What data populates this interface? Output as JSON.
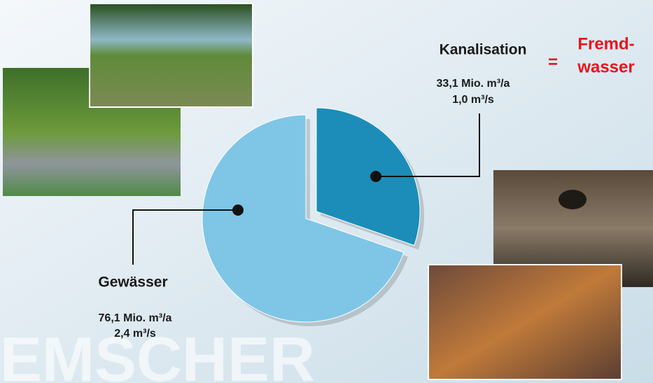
{
  "chart_data": {
    "type": "pie",
    "categories": [
      "Kanalisation",
      "Gewässer"
    ],
    "values": [
      33.1,
      76.1
    ],
    "value_labels": [
      "33,1 Mio. m³/a",
      "76,1 Mio. m³/a"
    ],
    "flow_labels": [
      "1,0 m³/s",
      "2,4 m³/s"
    ],
    "colors": [
      "#1b8db8",
      "#7fc6e6"
    ],
    "annotation": {
      "sign": "=",
      "lines": [
        "Fremd-",
        "wasser"
      ],
      "color": "#e8141c"
    },
    "watermark": "EMSCHER"
  }
}
